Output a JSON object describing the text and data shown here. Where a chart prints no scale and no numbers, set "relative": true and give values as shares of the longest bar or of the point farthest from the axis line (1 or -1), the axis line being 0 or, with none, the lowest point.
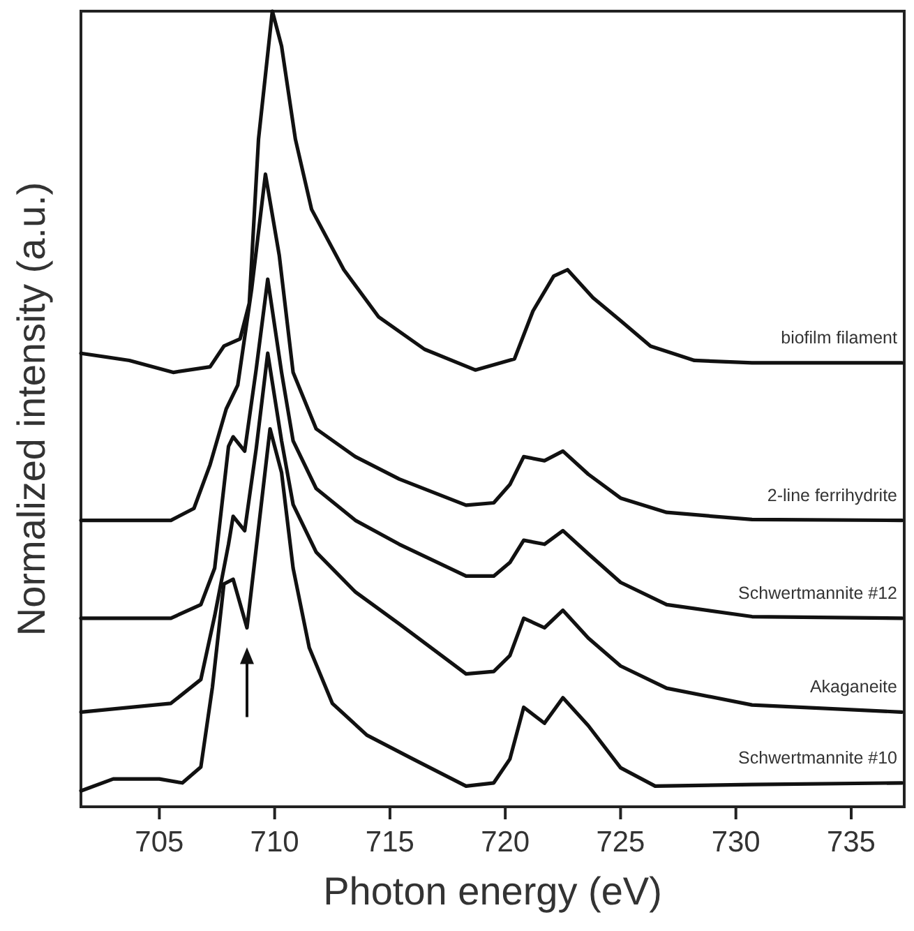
{
  "chart_data": {
    "type": "line",
    "relative": true,
    "xlabel": "Photon energy (eV)",
    "ylabel": "Normalized intensity (a.u.)",
    "xlim": [
      701.6,
      737.3
    ],
    "xticks": [
      705,
      710,
      715,
      720,
      725,
      730,
      735
    ],
    "legend": false,
    "grid": false,
    "line_style": "solid",
    "series": [
      {
        "name": "biofilm filament",
        "color": "#111111",
        "x": [
          701.6,
          703.7,
          705.6,
          707.2,
          707.8,
          708.5,
          708.9,
          709.3,
          709.9,
          710.3,
          710.9,
          711.6,
          713.0,
          714.5,
          716.5,
          718.7,
          720.4,
          721.2,
          722.1,
          722.7,
          723.8,
          725.0,
          726.3,
          728.2,
          730.7,
          737.2
        ],
        "values": [
          0.57,
          0.561,
          0.546,
          0.553,
          0.579,
          0.588,
          0.633,
          0.839,
          1,
          0.956,
          0.839,
          0.751,
          0.675,
          0.616,
          0.575,
          0.549,
          0.563,
          0.623,
          0.667,
          0.675,
          0.64,
          0.611,
          0.579,
          0.561,
          0.558,
          0.558
        ]
      },
      {
        "name": "2-line ferrihydrite",
        "color": "#111111",
        "x": [
          701.6,
          705.5,
          706.5,
          707.2,
          707.9,
          708.4,
          709.0,
          709.6,
          710.2,
          710.8,
          711.8,
          713.5,
          715.4,
          718.3,
          719.5,
          720.2,
          720.8,
          721.7,
          722.5,
          723.6,
          725.0,
          727.0,
          730.7,
          737.2
        ],
        "values": [
          0.36,
          0.36,
          0.375,
          0.43,
          0.5,
          0.53,
          0.65,
          0.795,
          0.693,
          0.546,
          0.475,
          0.44,
          0.412,
          0.379,
          0.382,
          0.405,
          0.44,
          0.435,
          0.447,
          0.418,
          0.388,
          0.37,
          0.361,
          0.36
        ]
      },
      {
        "name": "Schwertmannite #12",
        "color": "#111111",
        "x": [
          701.6,
          705.5,
          706.8,
          707.4,
          708.0,
          708.2,
          708.7,
          709.2,
          709.7,
          710.3,
          710.8,
          711.8,
          713.5,
          715.4,
          718.3,
          719.5,
          720.2,
          720.8,
          721.7,
          722.5,
          723.6,
          725.0,
          727.0,
          730.7,
          737.2
        ],
        "values": [
          0.237,
          0.237,
          0.254,
          0.3,
          0.453,
          0.465,
          0.447,
          0.55,
          0.663,
          0.546,
          0.46,
          0.4,
          0.36,
          0.33,
          0.29,
          0.29,
          0.307,
          0.335,
          0.33,
          0.347,
          0.318,
          0.282,
          0.254,
          0.239,
          0.237
        ]
      },
      {
        "name": "Akaganeite",
        "color": "#111111",
        "x": [
          701.6,
          705.5,
          706.8,
          707.4,
          708.0,
          708.2,
          708.7,
          709.2,
          709.7,
          710.3,
          710.8,
          711.8,
          713.5,
          715.4,
          718.3,
          719.5,
          720.2,
          720.8,
          721.7,
          722.5,
          723.6,
          725.0,
          727.0,
          730.7,
          737.2
        ],
        "values": [
          0.119,
          0.13,
          0.16,
          0.24,
          0.33,
          0.365,
          0.347,
          0.45,
          0.57,
          0.46,
          0.38,
          0.32,
          0.27,
          0.23,
          0.167,
          0.17,
          0.19,
          0.237,
          0.225,
          0.247,
          0.212,
          0.177,
          0.149,
          0.128,
          0.119
        ]
      },
      {
        "name": "Schwertmannite #10",
        "color": "#111111",
        "x": [
          701.6,
          703.0,
          705.0,
          706.0,
          706.8,
          707.3,
          707.8,
          708.2,
          708.8,
          709.3,
          709.8,
          710.3,
          710.8,
          711.5,
          712.5,
          714.0,
          716.0,
          718.3,
          719.5,
          720.2,
          720.8,
          721.7,
          722.5,
          723.6,
          725.0,
          726.5,
          730.7,
          737.2
        ],
        "values": [
          0.02,
          0.035,
          0.035,
          0.03,
          0.05,
          0.15,
          0.28,
          0.286,
          0.225,
          0.35,
          0.475,
          0.42,
          0.3,
          0.2,
          0.13,
          0.09,
          0.06,
          0.026,
          0.03,
          0.06,
          0.125,
          0.105,
          0.137,
          0.102,
          0.049,
          0.026,
          0.028,
          0.03
        ]
      }
    ]
  }
}
